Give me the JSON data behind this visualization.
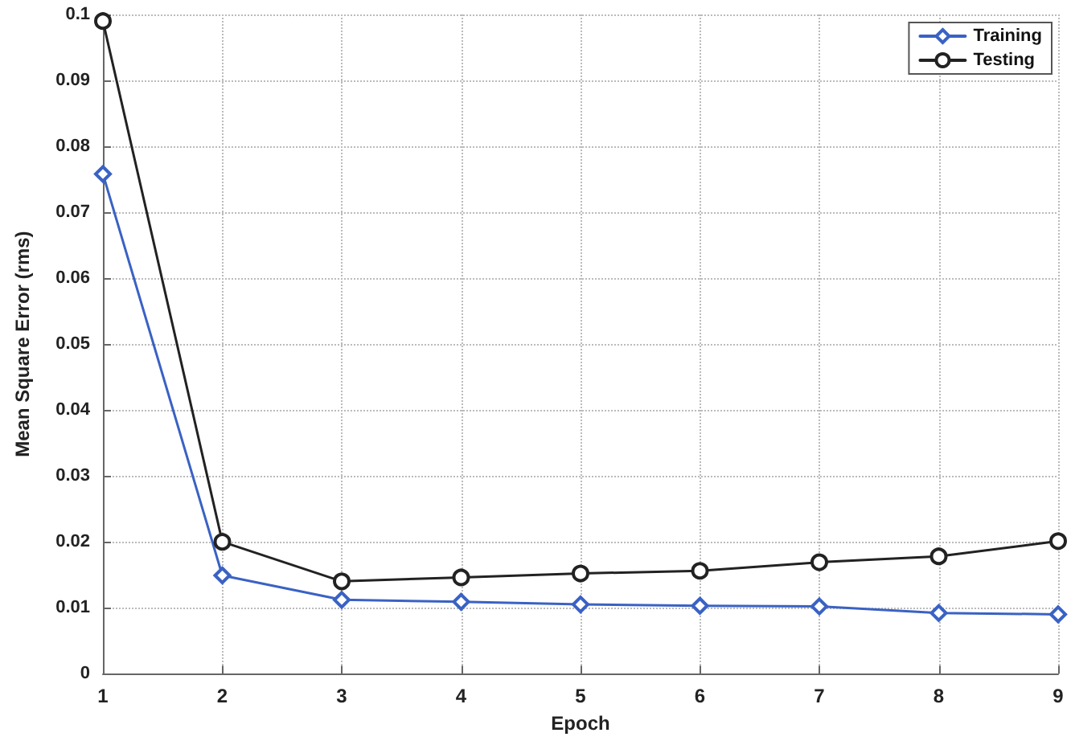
{
  "chart_data": {
    "type": "line",
    "xlabel": "Epoch",
    "ylabel": "Mean Square Error (rms)",
    "x": [
      1,
      2,
      3,
      4,
      5,
      6,
      7,
      8,
      9
    ],
    "series": [
      {
        "name": "Training",
        "color": "#3a62c4",
        "marker": "diamond",
        "values": [
          0.0758,
          0.0149,
          0.0112,
          0.0109,
          0.0105,
          0.0103,
          0.0102,
          0.0092,
          0.009
        ]
      },
      {
        "name": "Testing",
        "color": "#222222",
        "marker": "circle",
        "values": [
          0.099,
          0.02,
          0.014,
          0.0146,
          0.0152,
          0.0156,
          0.0169,
          0.0178,
          0.0201
        ]
      }
    ],
    "xlim": [
      1,
      9
    ],
    "xticks": [
      1,
      2,
      3,
      4,
      5,
      6,
      7,
      8,
      9
    ],
    "ylim": [
      0,
      0.1
    ],
    "yticks": [
      0,
      0.01,
      0.02,
      0.03,
      0.04,
      0.05,
      0.06,
      0.07,
      0.08,
      0.09,
      0.1
    ],
    "grid": true,
    "legend": "top right",
    "line_style": "solid"
  }
}
